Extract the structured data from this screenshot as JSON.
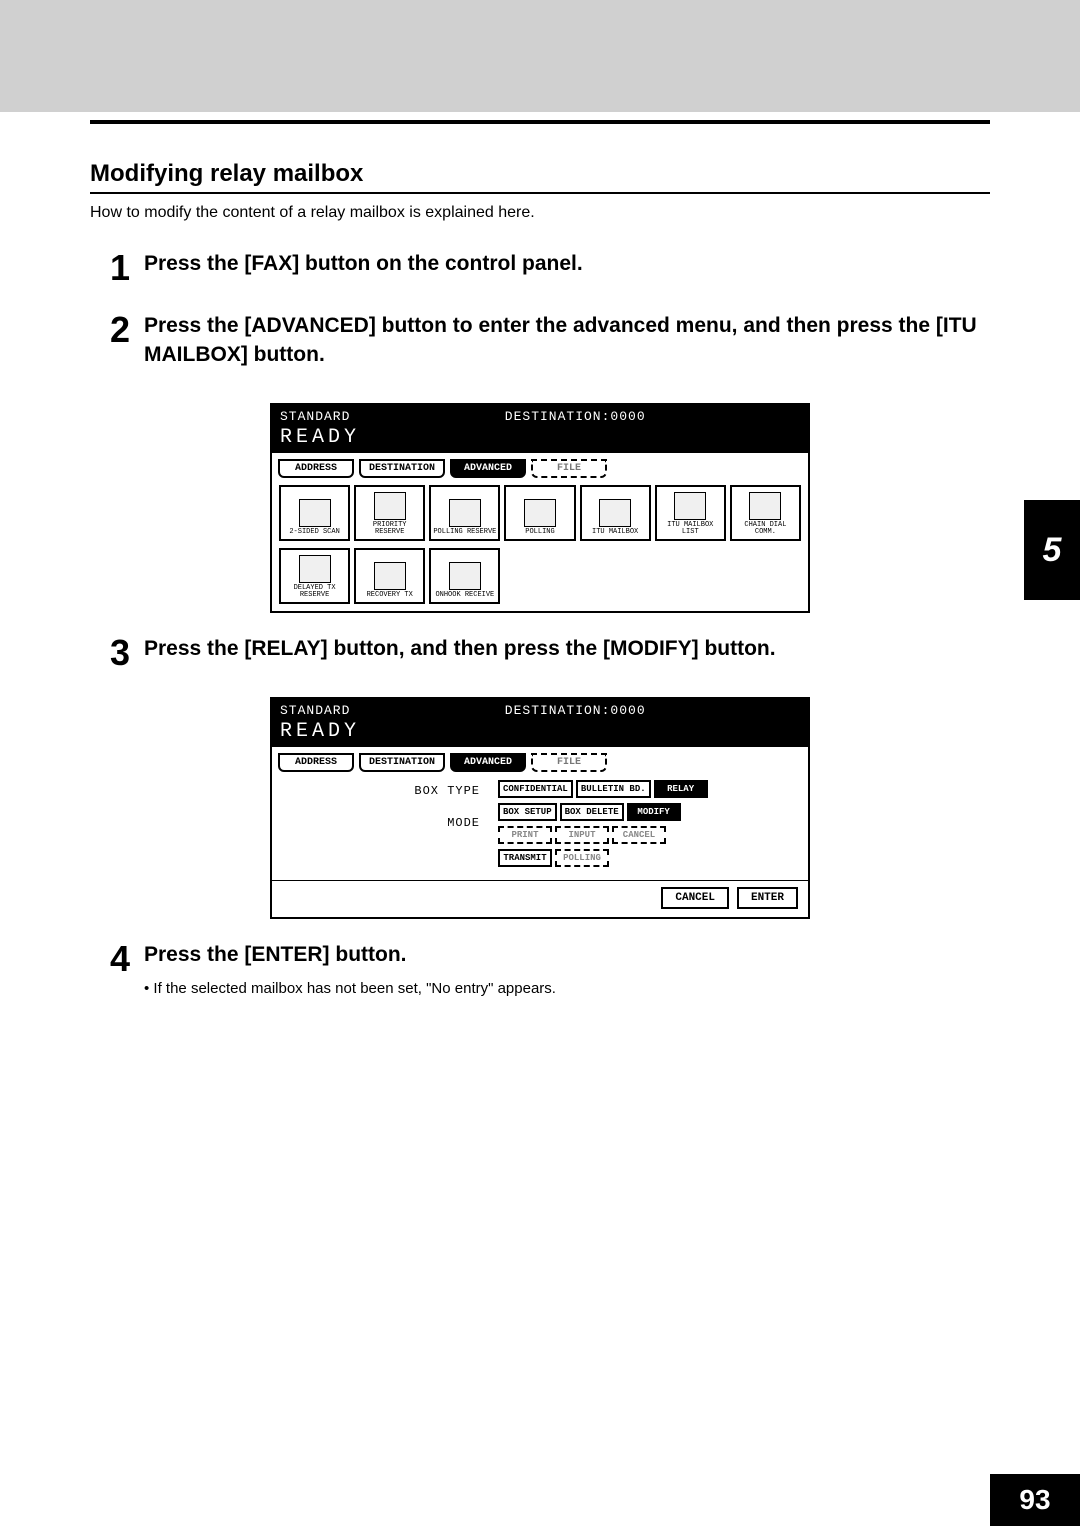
{
  "section": {
    "title": "Modifying relay mailbox",
    "intro": "How to modify the content of a relay mailbox is explained here."
  },
  "steps": [
    {
      "num": "1",
      "title": "Press the [FAX] button on the control panel."
    },
    {
      "num": "2",
      "title": "Press the [ADVANCED] button to enter the advanced menu, and then press the [ITU MAILBOX] button."
    },
    {
      "num": "3",
      "title": "Press the [RELAY] button, and then press the [MODIFY] button."
    },
    {
      "num": "4",
      "title": "Press the [ENTER] button.",
      "note": "If the selected mailbox has not been set, \"No entry\" appears."
    }
  ],
  "screen_common": {
    "standard": "STANDARD",
    "destination": "DESTINATION:0000",
    "ready": "READY",
    "tabs": {
      "address": "ADDRESS",
      "destination_tab": "DESTINATION",
      "advanced": "ADVANCED",
      "file": "FILE"
    }
  },
  "screen1": {
    "icons_row1": [
      "2-SIDED SCAN",
      "PRIORITY RESERVE",
      "POLLING RESERVE",
      "POLLING",
      "ITU MAILBOX",
      "ITU MAILBOX LIST",
      "CHAIN DIAL COMM."
    ],
    "icons_row2": [
      "DELAYED TX RESERVE",
      "RECOVERY TX",
      "ONHOOK RECEIVE"
    ]
  },
  "screen2": {
    "labels": {
      "boxtype": "BOX TYPE",
      "mode": "MODE"
    },
    "boxtype": {
      "confidential": "CONFIDENTIAL",
      "bulletin": "BULLETIN BD.",
      "relay": "RELAY"
    },
    "mode": {
      "setup": "BOX SETUP",
      "delete": "BOX DELETE",
      "modify": "MODIFY"
    },
    "row3": {
      "print": "PRINT",
      "input": "INPUT",
      "cancel": "CANCEL"
    },
    "row4": {
      "transmit": "TRANSMIT",
      "polling": "POLLING"
    },
    "footer": {
      "cancel": "CANCEL",
      "enter": "ENTER"
    }
  },
  "chapter": "5",
  "page": "93"
}
